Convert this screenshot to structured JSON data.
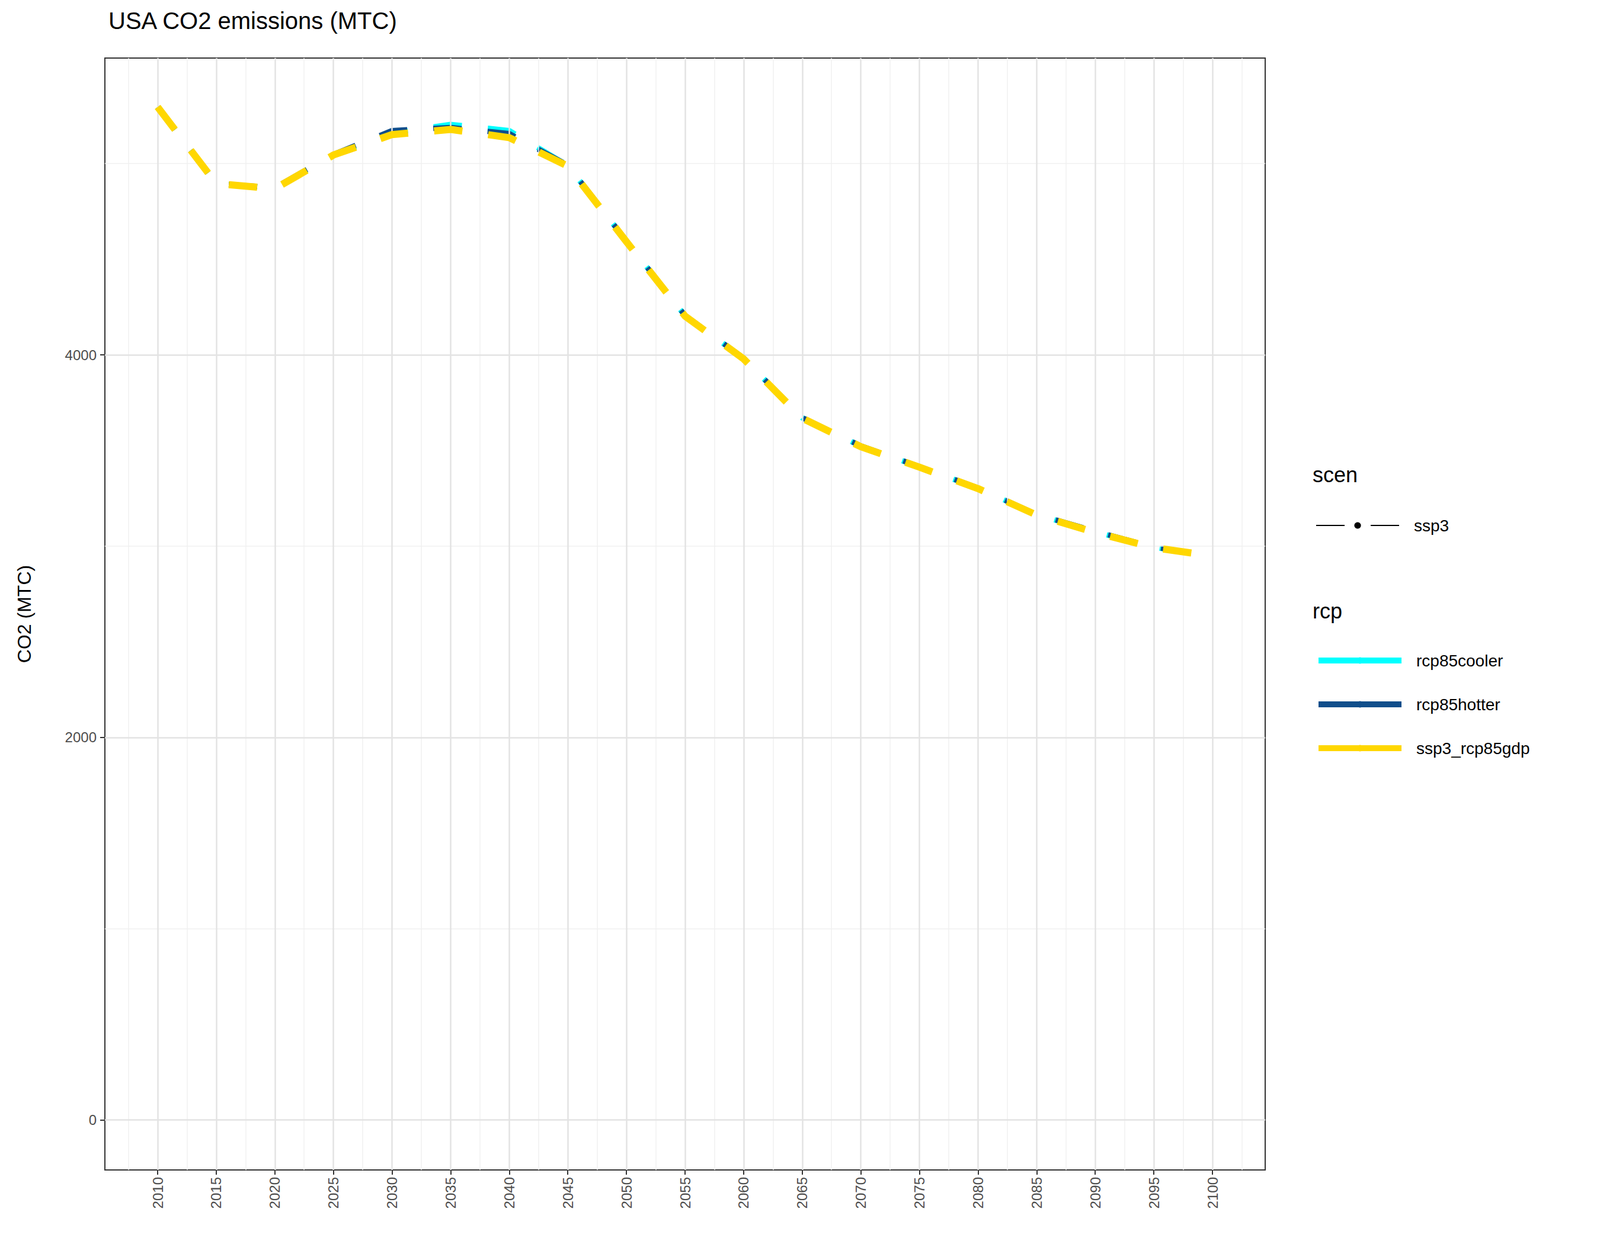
{
  "chart_data": {
    "type": "line",
    "title": "USA CO2 emissions (MTC)",
    "y_label": "CO2 (MTC)",
    "x": [
      2010,
      2015,
      2020,
      2025,
      2030,
      2035,
      2040,
      2045,
      2050,
      2055,
      2060,
      2065,
      2070,
      2075,
      2080,
      2085,
      2090,
      2095,
      2100
    ],
    "xlim": [
      2005.5,
      2104.5
    ],
    "xticks": [
      2010,
      2015,
      2020,
      2025,
      2030,
      2035,
      2040,
      2045,
      2050,
      2055,
      2060,
      2065,
      2070,
      2075,
      2080,
      2085,
      2090,
      2095,
      2100
    ],
    "ylim": [
      -261,
      5552
    ],
    "yticks": [
      0,
      2000,
      4000
    ],
    "grid": true,
    "legend": "right",
    "legend_titles": {
      "linetype": "scen",
      "color": "rcp"
    },
    "linetype_entries": [
      {
        "name": "ssp3",
        "line_style": "dashed",
        "color": "#000000"
      }
    ],
    "series": [
      {
        "name": "rcp85cooler",
        "color": "#00FFFF",
        "line_style": "dashed",
        "values": [
          5296,
          4896,
          4872,
          5045,
          5160,
          5205,
          5173,
          4990,
          4595,
          4205,
          3982,
          3671,
          3523,
          3415,
          3303,
          3165,
          3075,
          2994,
          2950
        ]
      },
      {
        "name": "rcp85hotter",
        "color": "#104E8B",
        "line_style": "dashed",
        "values": [
          5296,
          4896,
          4874,
          5048,
          5173,
          5189,
          5157,
          4992,
          4596,
          4206,
          3983,
          3672,
          3524,
          3416,
          3304,
          3166,
          3078,
          2995,
          2951
        ]
      },
      {
        "name": "ssp3_rcp85gdp",
        "color": "#FFD700",
        "line_style": "dashed",
        "values": [
          5296,
          4896,
          4869,
          5045,
          5152,
          5179,
          5136,
          4987,
          4592,
          4203,
          3979,
          3669,
          3520,
          3413,
          3301,
          3163,
          3072,
          2992,
          2949
        ]
      }
    ]
  }
}
